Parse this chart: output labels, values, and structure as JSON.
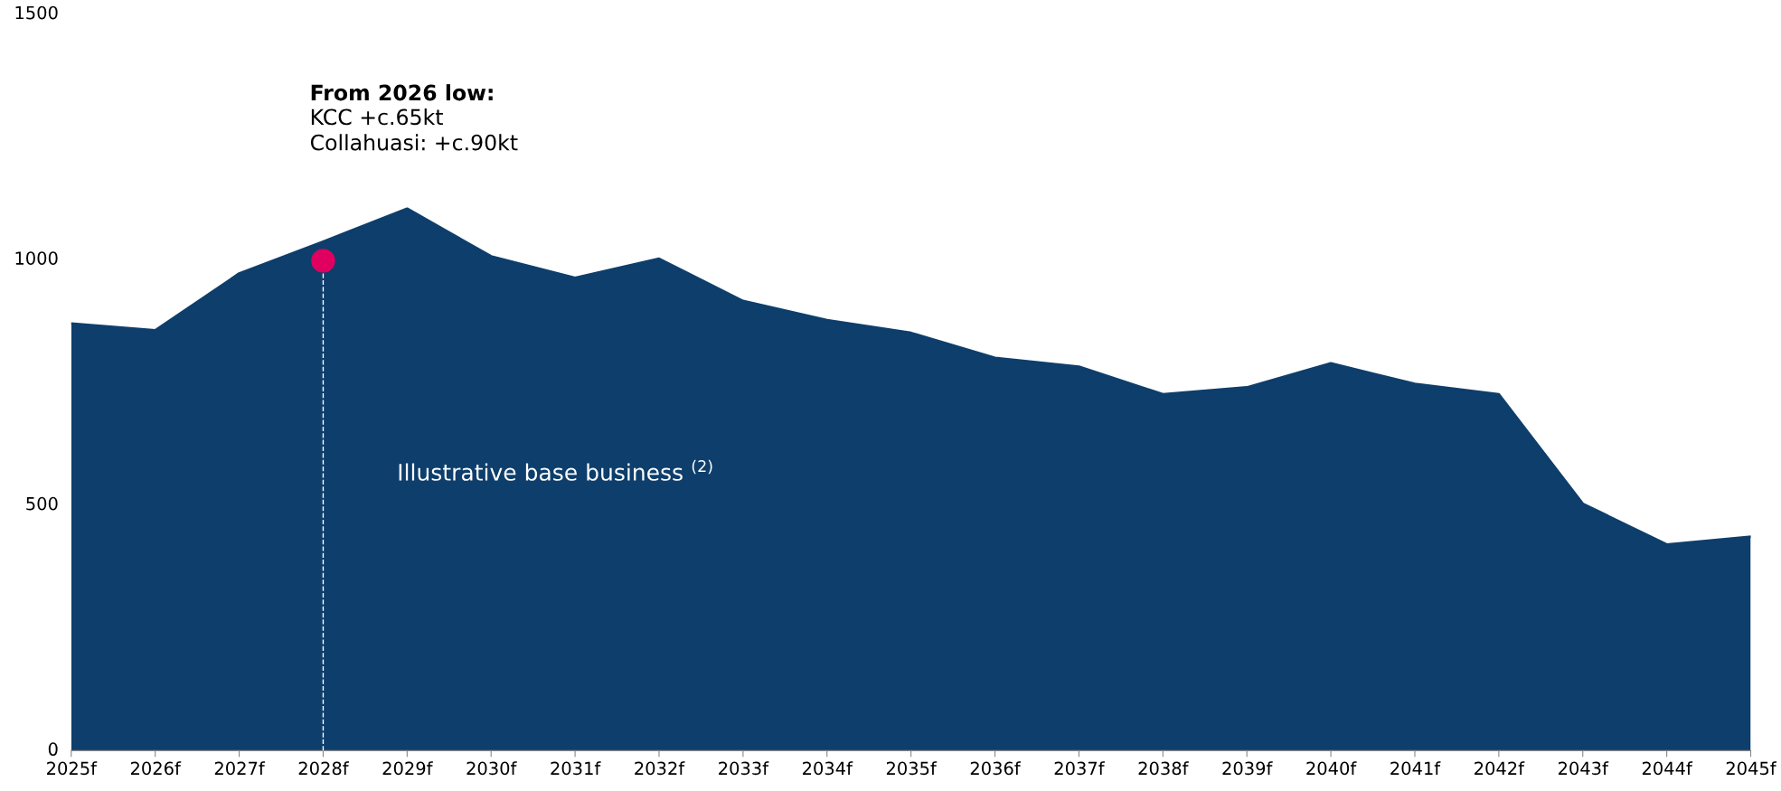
{
  "chart_data": {
    "type": "area",
    "categories": [
      "2025f",
      "2026f",
      "2027f",
      "2028f",
      "2029f",
      "2030f",
      "2031f",
      "2032f",
      "2033f",
      "2034f",
      "2035f",
      "2036f",
      "2037f",
      "2038f",
      "2039f",
      "2040f",
      "2041f",
      "2042f",
      "2043f",
      "2044f",
      "2045f"
    ],
    "series": [
      {
        "color": "#0e3e6b",
        "values": [
          870,
          856,
          972,
          1037,
          1104,
          1007,
          963,
          1002,
          916,
          877,
          851,
          800,
          782,
          726,
          740,
          789,
          747,
          726,
          503,
          420,
          436
        ]
      },
      {
        "type": "lollipop",
        "color": "#e0005f",
        "line_style": "dashed",
        "marker": "circle",
        "values": [
          null,
          null,
          null,
          998,
          null,
          null,
          null,
          null,
          null,
          null,
          null,
          null,
          null,
          null,
          null,
          null,
          null,
          null,
          null,
          null,
          null
        ]
      }
    ],
    "ylim": [
      0,
      1500
    ],
    "yticks": [
      0,
      500,
      1000,
      1500
    ],
    "grid": false,
    "legend": false,
    "annotations": [
      "From 2026 low:",
      "KCC +c.65kt\nCollahuasi: +c.90kt",
      "Illustrative base business $^{(2)}$"
    ]
  }
}
